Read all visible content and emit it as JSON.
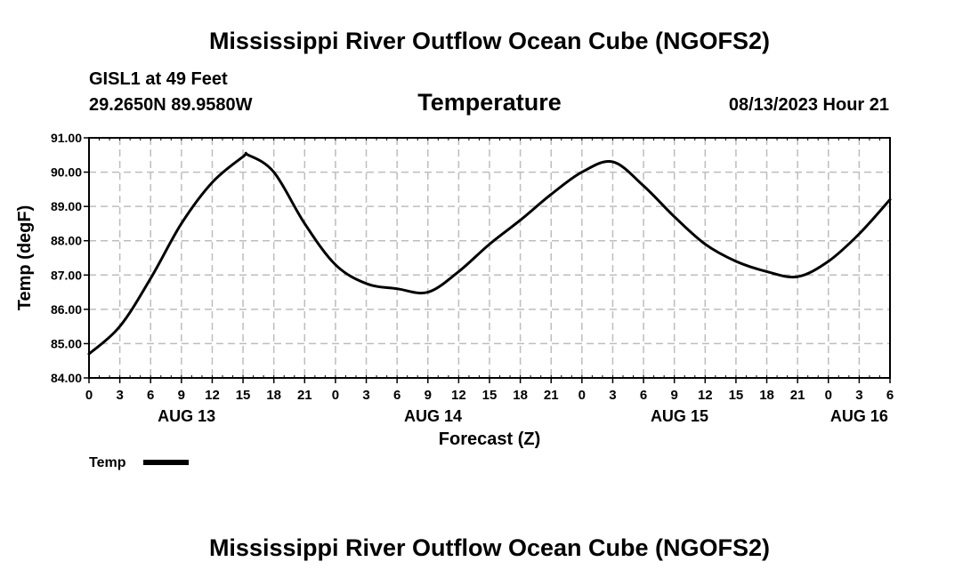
{
  "header": {
    "title": "Mississippi River Outflow Ocean Cube (NGOFS2)",
    "station": "GISL1 at 49 Feet",
    "coords": "29.2650N  89.9580W",
    "variable": "Temperature",
    "datetime": "08/13/2023 Hour 21"
  },
  "footer": {
    "title": "Mississippi River Outflow Ocean Cube (NGOFS2)"
  },
  "chart_data": {
    "type": "line",
    "title": "Temperature",
    "xlabel": "Forecast (Z)",
    "ylabel": "Temp (degF)",
    "ylim": [
      84.0,
      91.0
    ],
    "xlim": [
      0,
      78
    ],
    "grid": true,
    "y_ticks": [
      "84.00",
      "85.00",
      "86.00",
      "87.00",
      "88.00",
      "89.00",
      "90.00",
      "91.00"
    ],
    "y_tick_values": [
      84,
      85,
      86,
      87,
      88,
      89,
      90,
      91
    ],
    "x_ticks": [
      "0",
      "3",
      "6",
      "9",
      "12",
      "15",
      "18",
      "21",
      "0",
      "3",
      "6",
      "9",
      "12",
      "15",
      "18",
      "21",
      "0",
      "3",
      "6",
      "9",
      "12",
      "15",
      "18",
      "21",
      "0",
      "3",
      "6"
    ],
    "x_tick_values": [
      0,
      3,
      6,
      9,
      12,
      15,
      18,
      21,
      24,
      27,
      30,
      33,
      36,
      39,
      42,
      45,
      48,
      51,
      54,
      57,
      60,
      63,
      66,
      69,
      72,
      75,
      78
    ],
    "day_labels": [
      {
        "label": "AUG 13",
        "at": 9.5
      },
      {
        "label": "AUG 14",
        "at": 33.5
      },
      {
        "label": "AUG 15",
        "at": 57.5
      },
      {
        "label": "AUG 16",
        "at": 75
      }
    ],
    "legend": {
      "label": "Temp",
      "position": "bottom-left"
    },
    "series": [
      {
        "name": "Temp",
        "x": [
          0,
          3,
          6,
          9,
          12,
          15,
          15.5,
          18,
          21,
          24,
          27,
          30,
          33,
          36,
          39,
          42,
          45,
          48,
          51,
          54,
          57,
          60,
          63,
          66,
          69,
          72,
          75,
          78
        ],
        "values": [
          84.7,
          85.5,
          86.9,
          88.5,
          89.7,
          90.45,
          90.5,
          90.0,
          88.5,
          87.3,
          86.75,
          86.6,
          86.5,
          87.1,
          87.9,
          88.6,
          89.35,
          90.0,
          90.3,
          89.6,
          88.7,
          87.9,
          87.4,
          87.1,
          86.95,
          87.4,
          88.2,
          89.2
        ]
      }
    ]
  }
}
